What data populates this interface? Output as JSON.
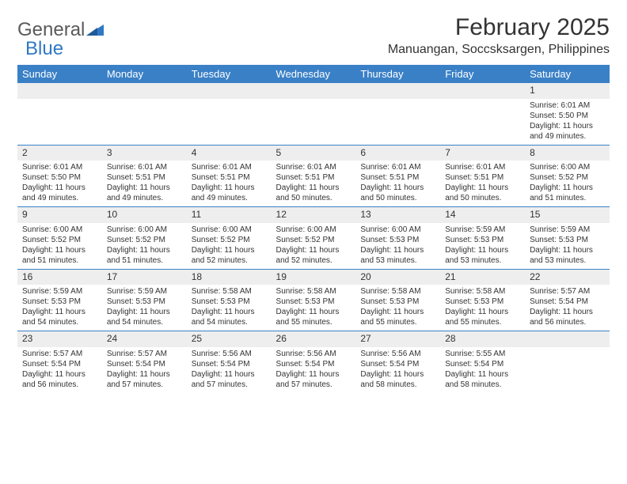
{
  "logo": {
    "text_general": "General",
    "text_blue": "Blue"
  },
  "header": {
    "month_title": "February 2025",
    "location": "Manuangan, Soccsksargen, Philippines"
  },
  "weekdays": [
    "Sunday",
    "Monday",
    "Tuesday",
    "Wednesday",
    "Thursday",
    "Friday",
    "Saturday"
  ],
  "colors": {
    "header_bg": "#3a80c6",
    "header_text": "#ffffff",
    "daynum_bg": "#eeeeee",
    "row_border": "#3a80c6",
    "text": "#333333",
    "logo_gray": "#5a5a5a",
    "logo_blue": "#2f78c4"
  },
  "weeks": [
    [
      null,
      null,
      null,
      null,
      null,
      null,
      {
        "n": "1",
        "sunrise": "Sunrise: 6:01 AM",
        "sunset": "Sunset: 5:50 PM",
        "dl1": "Daylight: 11 hours",
        "dl2": "and 49 minutes."
      }
    ],
    [
      {
        "n": "2",
        "sunrise": "Sunrise: 6:01 AM",
        "sunset": "Sunset: 5:50 PM",
        "dl1": "Daylight: 11 hours",
        "dl2": "and 49 minutes."
      },
      {
        "n": "3",
        "sunrise": "Sunrise: 6:01 AM",
        "sunset": "Sunset: 5:51 PM",
        "dl1": "Daylight: 11 hours",
        "dl2": "and 49 minutes."
      },
      {
        "n": "4",
        "sunrise": "Sunrise: 6:01 AM",
        "sunset": "Sunset: 5:51 PM",
        "dl1": "Daylight: 11 hours",
        "dl2": "and 49 minutes."
      },
      {
        "n": "5",
        "sunrise": "Sunrise: 6:01 AM",
        "sunset": "Sunset: 5:51 PM",
        "dl1": "Daylight: 11 hours",
        "dl2": "and 50 minutes."
      },
      {
        "n": "6",
        "sunrise": "Sunrise: 6:01 AM",
        "sunset": "Sunset: 5:51 PM",
        "dl1": "Daylight: 11 hours",
        "dl2": "and 50 minutes."
      },
      {
        "n": "7",
        "sunrise": "Sunrise: 6:01 AM",
        "sunset": "Sunset: 5:51 PM",
        "dl1": "Daylight: 11 hours",
        "dl2": "and 50 minutes."
      },
      {
        "n": "8",
        "sunrise": "Sunrise: 6:00 AM",
        "sunset": "Sunset: 5:52 PM",
        "dl1": "Daylight: 11 hours",
        "dl2": "and 51 minutes."
      }
    ],
    [
      {
        "n": "9",
        "sunrise": "Sunrise: 6:00 AM",
        "sunset": "Sunset: 5:52 PM",
        "dl1": "Daylight: 11 hours",
        "dl2": "and 51 minutes."
      },
      {
        "n": "10",
        "sunrise": "Sunrise: 6:00 AM",
        "sunset": "Sunset: 5:52 PM",
        "dl1": "Daylight: 11 hours",
        "dl2": "and 51 minutes."
      },
      {
        "n": "11",
        "sunrise": "Sunrise: 6:00 AM",
        "sunset": "Sunset: 5:52 PM",
        "dl1": "Daylight: 11 hours",
        "dl2": "and 52 minutes."
      },
      {
        "n": "12",
        "sunrise": "Sunrise: 6:00 AM",
        "sunset": "Sunset: 5:52 PM",
        "dl1": "Daylight: 11 hours",
        "dl2": "and 52 minutes."
      },
      {
        "n": "13",
        "sunrise": "Sunrise: 6:00 AM",
        "sunset": "Sunset: 5:53 PM",
        "dl1": "Daylight: 11 hours",
        "dl2": "and 53 minutes."
      },
      {
        "n": "14",
        "sunrise": "Sunrise: 5:59 AM",
        "sunset": "Sunset: 5:53 PM",
        "dl1": "Daylight: 11 hours",
        "dl2": "and 53 minutes."
      },
      {
        "n": "15",
        "sunrise": "Sunrise: 5:59 AM",
        "sunset": "Sunset: 5:53 PM",
        "dl1": "Daylight: 11 hours",
        "dl2": "and 53 minutes."
      }
    ],
    [
      {
        "n": "16",
        "sunrise": "Sunrise: 5:59 AM",
        "sunset": "Sunset: 5:53 PM",
        "dl1": "Daylight: 11 hours",
        "dl2": "and 54 minutes."
      },
      {
        "n": "17",
        "sunrise": "Sunrise: 5:59 AM",
        "sunset": "Sunset: 5:53 PM",
        "dl1": "Daylight: 11 hours",
        "dl2": "and 54 minutes."
      },
      {
        "n": "18",
        "sunrise": "Sunrise: 5:58 AM",
        "sunset": "Sunset: 5:53 PM",
        "dl1": "Daylight: 11 hours",
        "dl2": "and 54 minutes."
      },
      {
        "n": "19",
        "sunrise": "Sunrise: 5:58 AM",
        "sunset": "Sunset: 5:53 PM",
        "dl1": "Daylight: 11 hours",
        "dl2": "and 55 minutes."
      },
      {
        "n": "20",
        "sunrise": "Sunrise: 5:58 AM",
        "sunset": "Sunset: 5:53 PM",
        "dl1": "Daylight: 11 hours",
        "dl2": "and 55 minutes."
      },
      {
        "n": "21",
        "sunrise": "Sunrise: 5:58 AM",
        "sunset": "Sunset: 5:53 PM",
        "dl1": "Daylight: 11 hours",
        "dl2": "and 55 minutes."
      },
      {
        "n": "22",
        "sunrise": "Sunrise: 5:57 AM",
        "sunset": "Sunset: 5:54 PM",
        "dl1": "Daylight: 11 hours",
        "dl2": "and 56 minutes."
      }
    ],
    [
      {
        "n": "23",
        "sunrise": "Sunrise: 5:57 AM",
        "sunset": "Sunset: 5:54 PM",
        "dl1": "Daylight: 11 hours",
        "dl2": "and 56 minutes."
      },
      {
        "n": "24",
        "sunrise": "Sunrise: 5:57 AM",
        "sunset": "Sunset: 5:54 PM",
        "dl1": "Daylight: 11 hours",
        "dl2": "and 57 minutes."
      },
      {
        "n": "25",
        "sunrise": "Sunrise: 5:56 AM",
        "sunset": "Sunset: 5:54 PM",
        "dl1": "Daylight: 11 hours",
        "dl2": "and 57 minutes."
      },
      {
        "n": "26",
        "sunrise": "Sunrise: 5:56 AM",
        "sunset": "Sunset: 5:54 PM",
        "dl1": "Daylight: 11 hours",
        "dl2": "and 57 minutes."
      },
      {
        "n": "27",
        "sunrise": "Sunrise: 5:56 AM",
        "sunset": "Sunset: 5:54 PM",
        "dl1": "Daylight: 11 hours",
        "dl2": "and 58 minutes."
      },
      {
        "n": "28",
        "sunrise": "Sunrise: 5:55 AM",
        "sunset": "Sunset: 5:54 PM",
        "dl1": "Daylight: 11 hours",
        "dl2": "and 58 minutes."
      },
      null
    ]
  ]
}
